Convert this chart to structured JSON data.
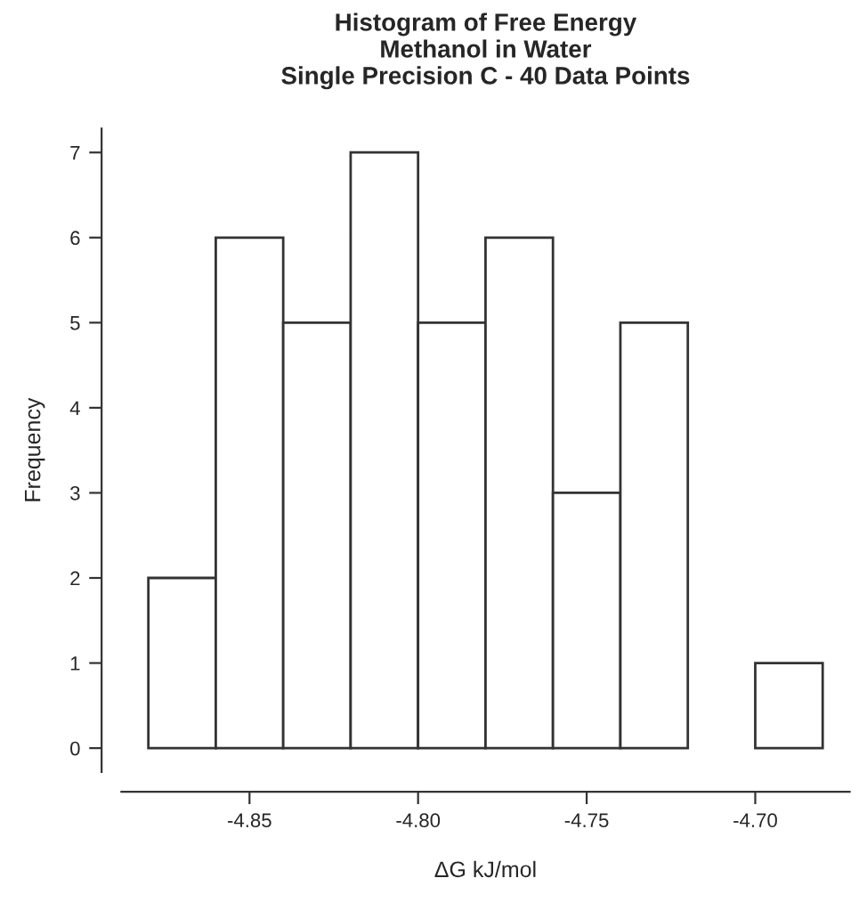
{
  "chart_data": {
    "type": "histogram",
    "title": "Histogram of Free Energy\nMethanol in Water\nSingle Precision C - 40 Data Points",
    "xlabel": "ΔG kJ/mol",
    "ylabel": "Frequency",
    "bins": [
      -4.88,
      -4.86,
      -4.84,
      -4.82,
      -4.8,
      -4.78,
      -4.76,
      -4.74,
      -4.72,
      -4.7,
      -4.68
    ],
    "values": [
      2,
      6,
      5,
      7,
      5,
      6,
      3,
      5,
      0,
      1
    ],
    "color": "#ffffff",
    "xlim": [
      -4.888,
      -4.672
    ],
    "xticks": [
      -4.85,
      {
        "value": -4.8,
        "label": "-4.80"
      },
      -4.75,
      {
        "value": -4.7,
        "label": "-4.70"
      }
    ],
    "ylim": [
      -0.28,
      7.28
    ],
    "yticks": [
      0,
      1,
      2,
      3,
      4,
      5,
      6,
      7
    ],
    "grid": false
  }
}
